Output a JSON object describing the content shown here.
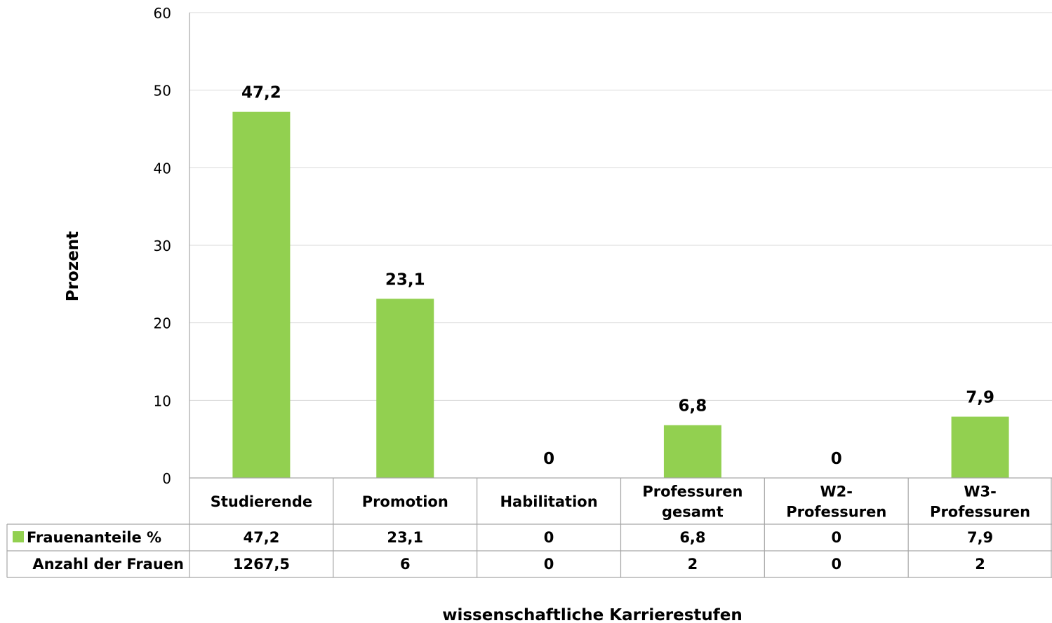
{
  "chart_data": {
    "type": "bar",
    "title": "",
    "xlabel": "wissenschaftliche Karrierestufen",
    "ylabel": "Prozent",
    "ylim": [
      0,
      60
    ],
    "y_ticks": [
      "0",
      "10",
      "20",
      "30",
      "40",
      "50",
      "60"
    ],
    "grid": true,
    "categories": [
      [
        "Studierende"
      ],
      [
        "Promotion"
      ],
      [
        "Habilitation"
      ],
      [
        "Professuren",
        "gesamt"
      ],
      [
        "W2-",
        "Professuren"
      ],
      [
        "W3-",
        "Professuren"
      ]
    ],
    "series": [
      {
        "name": "Frauenanteile %",
        "values": [
          47.2,
          23.1,
          0,
          6.8,
          0,
          7.9
        ],
        "labels": [
          "47,2",
          "23,1",
          "0",
          "6,8",
          "0",
          "7,9"
        ],
        "color": "#92d050"
      }
    ],
    "data_table": {
      "rows": [
        {
          "label": "Frauenanteile %",
          "legend_key": true,
          "cells": [
            "47,2",
            "23,1",
            "0",
            "6,8",
            "0",
            "7,9"
          ]
        },
        {
          "label": "Anzahl der Frauen",
          "legend_key": false,
          "cells": [
            "1267,5",
            "6",
            "0",
            "2",
            "0",
            "2"
          ]
        }
      ]
    }
  }
}
